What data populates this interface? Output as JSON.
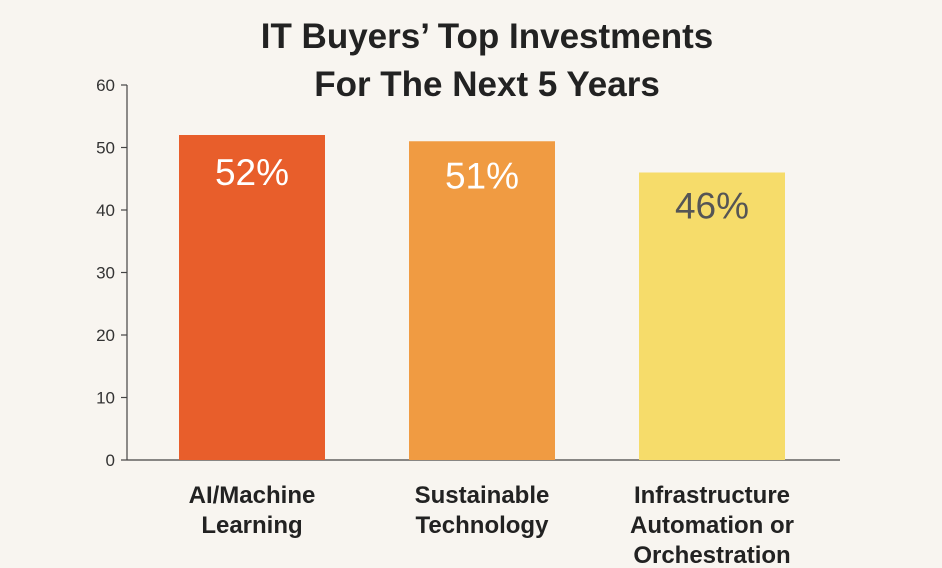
{
  "chart_data": {
    "type": "bar",
    "title_lines": [
      "IT Buyers’ Top Investments",
      "For The Next 5 Years"
    ],
    "xlabel": "",
    "ylabel": "",
    "ylim": [
      0,
      60
    ],
    "yticks": [
      0,
      10,
      20,
      30,
      40,
      50,
      60
    ],
    "grid": false,
    "categories": [
      [
        "AI/Machine",
        "Learning"
      ],
      [
        "Sustainable",
        "Technology"
      ],
      [
        "Infrastructure",
        "Automation or",
        "Orchestration"
      ]
    ],
    "values": [
      52,
      51,
      46
    ],
    "data_labels": [
      "52%",
      "51%",
      "46%"
    ],
    "colors": {
      "bars": [
        "#e85e2b",
        "#f09b42",
        "#f6dc6a"
      ],
      "data_label_text": [
        "#ffffff",
        "#ffffff",
        "#555555"
      ],
      "background": "#f8f5f0",
      "axis": "#444444"
    }
  }
}
